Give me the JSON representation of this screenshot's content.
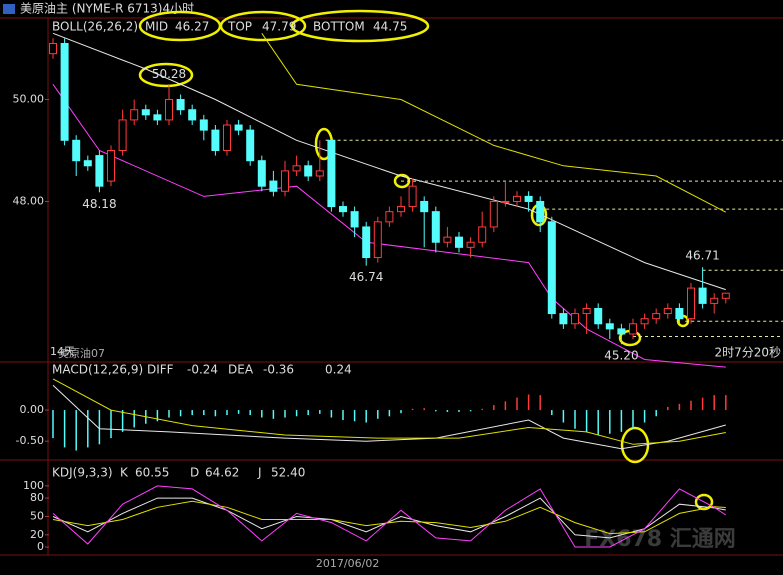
{
  "header": {
    "title": "美原油主 (NYME-R 6713)4小时",
    "period": "14天",
    "symbol": "美原油07",
    "countdown": "2时7分20秒",
    "watermark": "FX678 汇通网"
  },
  "chart_data": [
    {
      "type": "candlestick",
      "title": "BOLL(26,26,2)",
      "open": [
        50.9,
        51.1,
        49.2,
        48.8,
        48.9,
        48.4,
        49.0,
        49.6,
        49.8,
        49.7,
        49.6,
        50.0,
        49.8,
        49.6,
        49.4,
        49.0,
        49.5,
        49.4,
        48.8,
        48.4,
        48.2,
        48.6,
        48.7,
        48.5,
        49.2,
        47.9,
        47.8,
        47.5,
        46.9,
        47.6,
        47.8,
        47.9,
        48.0,
        47.8,
        47.2,
        47.3,
        47.1,
        47.2,
        47.5,
        48.0,
        48.0,
        48.1,
        48.0,
        47.6,
        45.8,
        45.6,
        45.8,
        45.9,
        45.6,
        45.5,
        45.4,
        45.6,
        45.7,
        45.8,
        45.9,
        45.7,
        46.3,
        46.0,
        46.1
      ],
      "high": [
        51.2,
        51.2,
        49.3,
        48.9,
        49.0,
        49.1,
        49.8,
        50.0,
        49.9,
        49.8,
        50.28,
        50.1,
        49.9,
        49.7,
        49.5,
        49.6,
        49.6,
        49.5,
        48.9,
        48.6,
        48.8,
        48.9,
        48.8,
        49.2,
        49.2,
        48.0,
        47.9,
        47.6,
        47.7,
        47.9,
        48.1,
        48.45,
        48.1,
        47.9,
        47.5,
        47.4,
        47.3,
        47.8,
        48.1,
        48.4,
        48.2,
        48.2,
        48.1,
        47.7,
        45.9,
        45.9,
        46.0,
        46.0,
        45.7,
        45.6,
        45.7,
        45.8,
        45.9,
        46.0,
        46.0,
        46.4,
        46.71,
        46.2,
        46.2
      ],
      "low": [
        50.8,
        49.1,
        48.5,
        48.6,
        48.18,
        48.3,
        48.9,
        49.5,
        49.6,
        49.5,
        49.5,
        49.7,
        49.5,
        49.2,
        48.9,
        48.9,
        49.3,
        48.7,
        48.2,
        48.1,
        48.1,
        48.5,
        48.4,
        48.4,
        47.8,
        47.7,
        47.3,
        46.74,
        46.8,
        47.5,
        47.7,
        47.8,
        47.1,
        47.0,
        47.1,
        47.0,
        46.9,
        47.1,
        47.4,
        47.9,
        47.9,
        47.8,
        47.4,
        45.7,
        45.5,
        45.5,
        45.4,
        45.5,
        45.3,
        45.2,
        45.3,
        45.5,
        45.6,
        45.7,
        45.6,
        45.6,
        45.9,
        45.8,
        46.0
      ],
      "close": [
        51.1,
        49.2,
        48.8,
        48.7,
        48.3,
        49.0,
        49.6,
        49.8,
        49.7,
        49.6,
        50.0,
        49.8,
        49.6,
        49.4,
        49.0,
        49.5,
        49.4,
        48.8,
        48.3,
        48.2,
        48.6,
        48.7,
        48.5,
        48.6,
        47.9,
        47.8,
        47.5,
        46.9,
        47.6,
        47.8,
        47.9,
        48.3,
        47.8,
        47.2,
        47.3,
        47.1,
        47.2,
        47.5,
        48.0,
        48.0,
        48.1,
        48.0,
        47.6,
        45.8,
        45.6,
        45.8,
        45.9,
        45.6,
        45.5,
        45.4,
        45.6,
        45.7,
        45.8,
        45.9,
        45.7,
        46.3,
        46.0,
        46.1,
        46.2
      ],
      "up_color": "#ff3a3a",
      "down_color": "#54fcfc",
      "lines": [
        {
          "name": "MID",
          "color": "#e8e8e8",
          "last": 46.27,
          "x": [
            0,
            8,
            14,
            21,
            30,
            41,
            51,
            58
          ],
          "values": [
            51.3,
            50.6,
            50.0,
            49.2,
            48.5,
            47.85,
            46.8,
            46.27
          ]
        },
        {
          "name": "TOP",
          "color": "#e0e000",
          "last": 47.79,
          "x": [
            18,
            21,
            30,
            38,
            44,
            52,
            58
          ],
          "values": [
            51.3,
            50.3,
            50.0,
            49.1,
            48.7,
            48.5,
            47.79
          ]
        },
        {
          "name": "BOTTOM",
          "color": "#ff40ff",
          "last": 44.75,
          "x": [
            0,
            4,
            13,
            21,
            27,
            34,
            41,
            43,
            46,
            51,
            58
          ],
          "values": [
            50.3,
            49.0,
            48.1,
            48.3,
            47.2,
            47.0,
            46.8,
            46.1,
            45.5,
            44.9,
            44.75
          ]
        }
      ],
      "annotations": [
        {
          "value": 50.28,
          "label": "50.28"
        },
        {
          "value": 48.18,
          "label": "48.18"
        },
        {
          "value": 46.74,
          "label": "46.74"
        },
        {
          "value": 45.2,
          "label": "45.20"
        },
        {
          "value": 46.71,
          "label": "46.71"
        }
      ],
      "levels": [
        {
          "x": 23.5,
          "value": 49.2
        },
        {
          "x": 30,
          "value": 48.4
        },
        {
          "x": 42,
          "value": 47.85
        },
        {
          "x": 56,
          "value": 46.65
        },
        {
          "x": 54.5,
          "value": 45.65
        },
        {
          "x": 50,
          "value": 45.35
        }
      ],
      "level_color": "#e8e8a0",
      "ylim": [
        44.85,
        51.6
      ],
      "yticks": [
        {
          "value": 50,
          "label": "50.00"
        },
        {
          "value": 48,
          "label": "48.00"
        }
      ],
      "xticks": [
        {
          "value": 25.4,
          "label": "2017/06/02"
        }
      ]
    },
    {
      "type": "macd",
      "title": "MACD(12,26,9)",
      "histogram": {
        "last": 0.24,
        "up_color": "#ff3a3a",
        "down_color": "#54fcfc",
        "values": [
          -0.45,
          -0.6,
          -0.65,
          -0.6,
          -0.55,
          -0.45,
          -0.35,
          -0.28,
          -0.22,
          -0.18,
          -0.12,
          -0.1,
          -0.08,
          -0.08,
          -0.1,
          -0.08,
          -0.06,
          -0.08,
          -0.12,
          -0.14,
          -0.12,
          -0.1,
          -0.08,
          -0.06,
          -0.12,
          -0.16,
          -0.18,
          -0.2,
          -0.14,
          -0.1,
          -0.05,
          0.02,
          0.03,
          -0.02,
          -0.03,
          -0.03,
          -0.02,
          0.02,
          0.08,
          0.14,
          0.2,
          0.25,
          0.24,
          -0.08,
          -0.2,
          -0.3,
          -0.36,
          -0.4,
          -0.38,
          -0.35,
          -0.3,
          -0.2,
          -0.1,
          0.05,
          0.1,
          0.15,
          0.2,
          0.24,
          0.24
        ]
      },
      "series": [
        {
          "name": "DIFF",
          "color": "#e8e8e8",
          "last": -0.24,
          "x": [
            0,
            4,
            10,
            20,
            27,
            33,
            41,
            44,
            49,
            53,
            58
          ],
          "values": [
            0.4,
            -0.3,
            -0.35,
            -0.45,
            -0.5,
            -0.45,
            -0.16,
            -0.45,
            -0.62,
            -0.5,
            -0.24
          ]
        },
        {
          "name": "DEA",
          "color": "#e0e000",
          "last": -0.36,
          "x": [
            0,
            5,
            12,
            20,
            28,
            35,
            41,
            46,
            50,
            54,
            58
          ],
          "values": [
            0.5,
            0.0,
            -0.25,
            -0.4,
            -0.45,
            -0.45,
            -0.28,
            -0.35,
            -0.55,
            -0.5,
            -0.36
          ]
        }
      ],
      "ylim": [
        -0.77,
        0.74
      ],
      "yticks": [
        {
          "value": 0,
          "label": "0.00"
        },
        {
          "value": -0.5,
          "label": "-0.50"
        }
      ]
    },
    {
      "type": "line",
      "title": "KDJ(9,3,3)",
      "series": [
        {
          "name": "K",
          "color": "#e8e8e8",
          "last": 60.55,
          "x": [
            0,
            3,
            6,
            9,
            12,
            15,
            18,
            21,
            24,
            27,
            30,
            33,
            36,
            39,
            42,
            45,
            48,
            51,
            54,
            57,
            58
          ],
          "values": [
            50,
            25,
            55,
            80,
            80,
            60,
            30,
            50,
            45,
            25,
            50,
            35,
            25,
            50,
            80,
            20,
            15,
            30,
            70,
            64,
            60.55
          ]
        },
        {
          "name": "D",
          "color": "#e0e000",
          "last": 64.62,
          "x": [
            0,
            3,
            6,
            9,
            12,
            15,
            18,
            21,
            24,
            27,
            30,
            33,
            36,
            39,
            42,
            45,
            48,
            51,
            54,
            57,
            58
          ],
          "values": [
            45,
            35,
            45,
            65,
            75,
            65,
            45,
            45,
            45,
            35,
            42,
            40,
            32,
            42,
            65,
            40,
            22,
            25,
            55,
            66,
            64.62
          ]
        },
        {
          "name": "J",
          "color": "#ff40ff",
          "last": {
            "value": 52.4,
            "label": "52.40"
          },
          "x": [
            0,
            3,
            6,
            9,
            12,
            15,
            18,
            21,
            24,
            27,
            30,
            33,
            36,
            39,
            42,
            45,
            48,
            51,
            54,
            57,
            58
          ],
          "values": [
            55,
            5,
            70,
            100,
            95,
            60,
            10,
            55,
            40,
            10,
            60,
            15,
            10,
            60,
            95,
            0,
            0,
            30,
            95,
            65,
            52.4
          ]
        }
      ],
      "ylim": [
        -13,
        139
      ],
      "yticks": [
        100,
        80,
        50,
        20,
        0
      ]
    }
  ]
}
